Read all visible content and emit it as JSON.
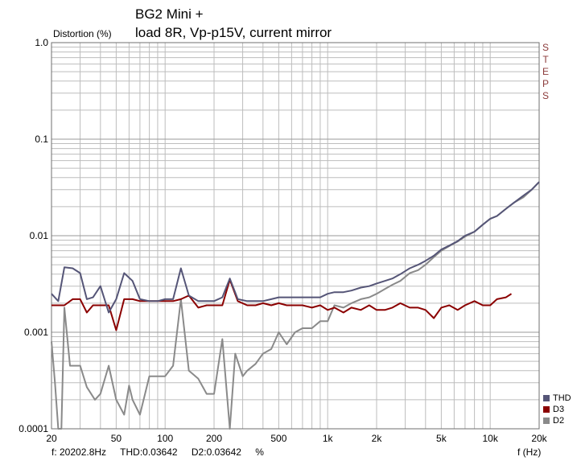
{
  "title_line1": "BG2 Mini +",
  "title_line2": "load 8R, Vp-p15V, current mirror",
  "side_label": [
    "S",
    "T",
    "E",
    "P",
    "S"
  ],
  "readout": {
    "freq": "f: 20202.8Hz",
    "thd": "THD:0.03642",
    "d2": "D2:0.03642",
    "unit": "%"
  },
  "colors": {
    "THD": "#555577",
    "D3": "#8b0000",
    "D2": "#8a8a8a",
    "grid": "#bdbdbd",
    "steps": "#8b3a3a"
  },
  "chart_data": {
    "type": "line",
    "x_scale": "log",
    "y_scale": "log",
    "xlabel": "f (Hz)",
    "ylabel": "Distortion (%)",
    "xlim": [
      20,
      20000
    ],
    "ylim": [
      0.0001,
      1.0
    ],
    "grid": true,
    "legend_position": "bottom-right",
    "x_ticks": [
      {
        "value": 20,
        "label": "20"
      },
      {
        "value": 50,
        "label": "50"
      },
      {
        "value": 100,
        "label": "100"
      },
      {
        "value": 200,
        "label": "200"
      },
      {
        "value": 500,
        "label": "500"
      },
      {
        "value": 1000,
        "label": "1k"
      },
      {
        "value": 2000,
        "label": "2k"
      },
      {
        "value": 5000,
        "label": "5k"
      },
      {
        "value": 10000,
        "label": "10k"
      },
      {
        "value": 20000,
        "label": "20k"
      }
    ],
    "y_ticks": [
      {
        "value": 1.0,
        "label": "1.0"
      },
      {
        "value": 0.1,
        "label": "0.1"
      },
      {
        "value": 0.01,
        "label": "0.01"
      },
      {
        "value": 0.001,
        "label": "0.001"
      },
      {
        "value": 0.0001,
        "label": "0.0001"
      }
    ],
    "series": [
      {
        "name": "THD",
        "points": [
          [
            20,
            0.0025
          ],
          [
            22,
            0.0021
          ],
          [
            24,
            0.0047
          ],
          [
            27,
            0.0046
          ],
          [
            30,
            0.0041
          ],
          [
            33,
            0.0022
          ],
          [
            36,
            0.0023
          ],
          [
            40,
            0.003
          ],
          [
            45,
            0.0016
          ],
          [
            50,
            0.0022
          ],
          [
            56,
            0.0041
          ],
          [
            63,
            0.0034
          ],
          [
            70,
            0.0022
          ],
          [
            80,
            0.0021
          ],
          [
            90,
            0.0021
          ],
          [
            100,
            0.0022
          ],
          [
            112,
            0.0022
          ],
          [
            125,
            0.0046
          ],
          [
            140,
            0.0024
          ],
          [
            160,
            0.0021
          ],
          [
            180,
            0.0021
          ],
          [
            200,
            0.0021
          ],
          [
            225,
            0.0023
          ],
          [
            250,
            0.0036
          ],
          [
            280,
            0.0022
          ],
          [
            320,
            0.0021
          ],
          [
            360,
            0.0021
          ],
          [
            400,
            0.0021
          ],
          [
            450,
            0.0022
          ],
          [
            500,
            0.0023
          ],
          [
            560,
            0.0023
          ],
          [
            630,
            0.0023
          ],
          [
            700,
            0.0023
          ],
          [
            800,
            0.0023
          ],
          [
            900,
            0.0023
          ],
          [
            1000,
            0.0025
          ],
          [
            1100,
            0.0026
          ],
          [
            1250,
            0.0026
          ],
          [
            1400,
            0.0027
          ],
          [
            1600,
            0.0029
          ],
          [
            1800,
            0.003
          ],
          [
            2000,
            0.0032
          ],
          [
            2250,
            0.0034
          ],
          [
            2500,
            0.0036
          ],
          [
            2800,
            0.004
          ],
          [
            3200,
            0.0046
          ],
          [
            3600,
            0.005
          ],
          [
            4000,
            0.0055
          ],
          [
            4500,
            0.0062
          ],
          [
            5000,
            0.0072
          ],
          [
            5600,
            0.0079
          ],
          [
            6300,
            0.0088
          ],
          [
            7000,
            0.01
          ],
          [
            8000,
            0.011
          ],
          [
            9000,
            0.013
          ],
          [
            10000,
            0.015
          ],
          [
            11000,
            0.016
          ],
          [
            12500,
            0.019
          ],
          [
            14000,
            0.022
          ],
          [
            16000,
            0.026
          ],
          [
            18000,
            0.03
          ],
          [
            20000,
            0.036
          ]
        ]
      },
      {
        "name": "D3",
        "points": [
          [
            20,
            0.0019
          ],
          [
            22,
            0.0019
          ],
          [
            24,
            0.0019
          ],
          [
            27,
            0.0022
          ],
          [
            30,
            0.0022
          ],
          [
            33,
            0.0016
          ],
          [
            36,
            0.0019
          ],
          [
            40,
            0.0019
          ],
          [
            45,
            0.0019
          ],
          [
            50,
            0.00105
          ],
          [
            56,
            0.0022
          ],
          [
            63,
            0.0022
          ],
          [
            70,
            0.0021
          ],
          [
            80,
            0.0021
          ],
          [
            90,
            0.0021
          ],
          [
            100,
            0.0021
          ],
          [
            112,
            0.0021
          ],
          [
            125,
            0.0022
          ],
          [
            140,
            0.0024
          ],
          [
            160,
            0.0018
          ],
          [
            180,
            0.0019
          ],
          [
            200,
            0.0019
          ],
          [
            225,
            0.0019
          ],
          [
            250,
            0.0035
          ],
          [
            280,
            0.0021
          ],
          [
            320,
            0.0019
          ],
          [
            360,
            0.0019
          ],
          [
            400,
            0.002
          ],
          [
            450,
            0.0019
          ],
          [
            500,
            0.002
          ],
          [
            560,
            0.0019
          ],
          [
            630,
            0.0019
          ],
          [
            700,
            0.0019
          ],
          [
            800,
            0.0018
          ],
          [
            900,
            0.0019
          ],
          [
            1000,
            0.0017
          ],
          [
            1100,
            0.0018
          ],
          [
            1250,
            0.0016
          ],
          [
            1400,
            0.0018
          ],
          [
            1600,
            0.0017
          ],
          [
            1800,
            0.0019
          ],
          [
            2000,
            0.0017
          ],
          [
            2250,
            0.0017
          ],
          [
            2500,
            0.0018
          ],
          [
            2800,
            0.002
          ],
          [
            3200,
            0.0018
          ],
          [
            3600,
            0.0018
          ],
          [
            4000,
            0.0017
          ],
          [
            4500,
            0.0014
          ],
          [
            5000,
            0.0018
          ],
          [
            5600,
            0.0019
          ],
          [
            6300,
            0.0017
          ],
          [
            7000,
            0.0019
          ],
          [
            8000,
            0.0021
          ],
          [
            9000,
            0.0019
          ],
          [
            10000,
            0.0019
          ],
          [
            11000,
            0.0022
          ],
          [
            12500,
            0.0023
          ],
          [
            13500,
            0.0025
          ]
        ]
      },
      {
        "name": "D2",
        "points": [
          [
            20,
            0.0008
          ],
          [
            21,
            0.0003
          ],
          [
            22,
            0.0001
          ],
          [
            23,
            7e-05
          ],
          [
            24,
            0.0018
          ],
          [
            26,
            0.00045
          ],
          [
            28,
            0.00045
          ],
          [
            30,
            0.00045
          ],
          [
            33,
            0.00027
          ],
          [
            37,
            0.0002
          ],
          [
            40,
            0.00023
          ],
          [
            45,
            0.00045
          ],
          [
            50,
            0.0002
          ],
          [
            56,
            0.00014
          ],
          [
            60,
            0.00028
          ],
          [
            63,
            0.0002
          ],
          [
            70,
            0.00014
          ],
          [
            80,
            0.00035
          ],
          [
            90,
            0.00035
          ],
          [
            100,
            0.00035
          ],
          [
            112,
            0.00045
          ],
          [
            125,
            0.0022
          ],
          [
            140,
            0.0004
          ],
          [
            160,
            0.00033
          ],
          [
            180,
            0.00023
          ],
          [
            200,
            0.00023
          ],
          [
            225,
            0.00085
          ],
          [
            250,
            7e-05
          ],
          [
            270,
            0.0006
          ],
          [
            300,
            0.00035
          ],
          [
            320,
            0.0004
          ],
          [
            360,
            0.00047
          ],
          [
            400,
            0.0006
          ],
          [
            450,
            0.00067
          ],
          [
            500,
            0.001
          ],
          [
            560,
            0.00075
          ],
          [
            630,
            0.001
          ],
          [
            700,
            0.0011
          ],
          [
            800,
            0.0011
          ],
          [
            900,
            0.0013
          ],
          [
            1000,
            0.0013
          ],
          [
            1100,
            0.0019
          ],
          [
            1250,
            0.0018
          ],
          [
            1400,
            0.002
          ],
          [
            1600,
            0.0022
          ],
          [
            1800,
            0.0023
          ],
          [
            2000,
            0.0025
          ],
          [
            2250,
            0.0028
          ],
          [
            2500,
            0.0031
          ],
          [
            2800,
            0.0034
          ],
          [
            3200,
            0.0041
          ],
          [
            3600,
            0.0044
          ],
          [
            4000,
            0.005
          ],
          [
            4500,
            0.006
          ],
          [
            5000,
            0.007
          ],
          [
            5600,
            0.0078
          ],
          [
            6300,
            0.0087
          ],
          [
            7000,
            0.0098
          ],
          [
            8000,
            0.011
          ],
          [
            9000,
            0.013
          ],
          [
            10000,
            0.015
          ],
          [
            11000,
            0.016
          ],
          [
            12500,
            0.019
          ],
          [
            14000,
            0.022
          ],
          [
            16000,
            0.025
          ],
          [
            18000,
            0.03
          ],
          [
            20000,
            0.036
          ]
        ]
      }
    ]
  }
}
